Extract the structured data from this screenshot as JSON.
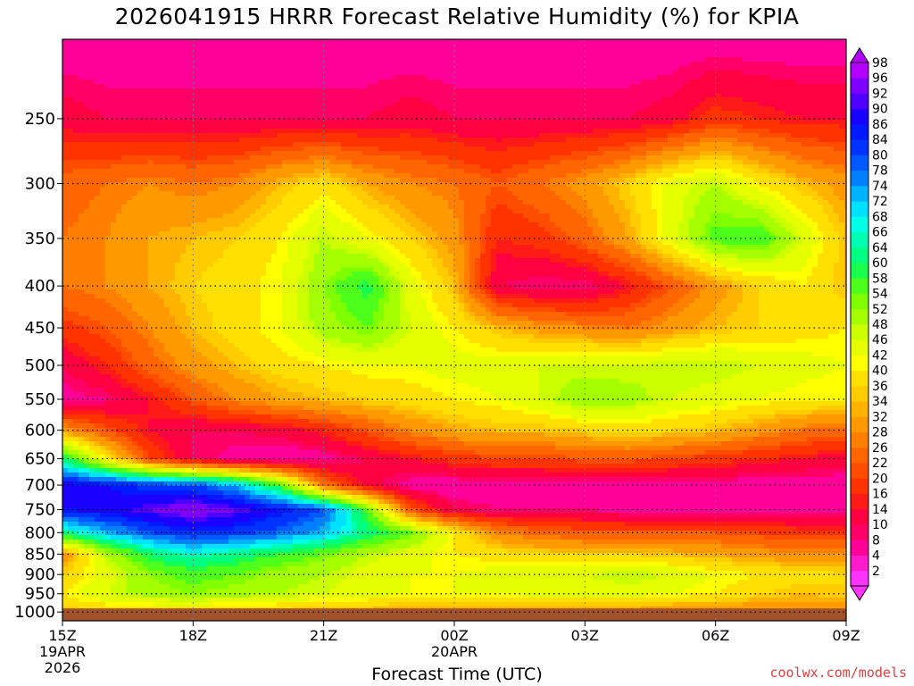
{
  "chart_data": {
    "type": "heatmap",
    "title": "2026041915 HRRR Forecast Relative Humidity (%) for KPIA",
    "xlabel": "Forecast Time (UTC)",
    "ylabel": "",
    "x_ticks": [
      {
        "hours": 0,
        "label": "15Z",
        "date": "19APR",
        "year": "2026"
      },
      {
        "hours": 3,
        "label": "18Z"
      },
      {
        "hours": 6,
        "label": "21Z"
      },
      {
        "hours": 9,
        "label": "00Z",
        "date": "20APR"
      },
      {
        "hours": 12,
        "label": "03Z"
      },
      {
        "hours": 15,
        "label": "06Z"
      },
      {
        "hours": 18,
        "label": "09Z"
      }
    ],
    "x_range_hours": [
      0,
      18
    ],
    "y_ticks": [
      250,
      300,
      350,
      400,
      450,
      500,
      550,
      600,
      650,
      700,
      750,
      800,
      850,
      900,
      950,
      1000
    ],
    "y_range_hPa": [
      200,
      1025
    ],
    "y_scale": "log-pressure",
    "grid": true,
    "colorbar_levels": [
      2,
      4,
      8,
      10,
      14,
      16,
      20,
      22,
      26,
      28,
      32,
      34,
      36,
      40,
      42,
      46,
      48,
      52,
      54,
      58,
      60,
      64,
      66,
      68,
      72,
      74,
      78,
      80,
      84,
      86,
      90,
      92,
      96,
      98
    ],
    "colorbar_colors": [
      "#ff33ff",
      "#ff1acc",
      "#ff0099",
      "#ff0066",
      "#ff0040",
      "#ff1a1a",
      "#ff3300",
      "#ff4d00",
      "#ff6600",
      "#ff8000",
      "#ff9900",
      "#ffb300",
      "#ffcc00",
      "#ffe000",
      "#ffff00",
      "#e6ff00",
      "#ccff00",
      "#a6ff00",
      "#80ff00",
      "#4dff1a",
      "#1aff4d",
      "#00ff80",
      "#00ffb3",
      "#00ffe6",
      "#00e0ff",
      "#00b3ff",
      "#0080ff",
      "#0059ff",
      "#0033ff",
      "#0019ff",
      "#1a00ff",
      "#4d00ff",
      "#8000ff",
      "#b300ff"
    ],
    "ground_level_hPa": 990,
    "ground_color": "#a0522d",
    "series": [
      {
        "pressure": 200,
        "rh": [
          5,
          5,
          5,
          5,
          5,
          5,
          5,
          5,
          5,
          5,
          5,
          5,
          5,
          5,
          5,
          5,
          5,
          5,
          5
        ]
      },
      {
        "pressure": 250,
        "rh": [
          12,
          10,
          10,
          10,
          10,
          10,
          10,
          10,
          12,
          10,
          10,
          10,
          10,
          10,
          12,
          18,
          16,
          14,
          14
        ]
      },
      {
        "pressure": 300,
        "rh": [
          24,
          26,
          28,
          26,
          28,
          34,
          38,
          32,
          28,
          26,
          22,
          26,
          30,
          36,
          44,
          48,
          40,
          34,
          30
        ]
      },
      {
        "pressure": 350,
        "rh": [
          26,
          28,
          32,
          34,
          36,
          40,
          48,
          42,
          36,
          30,
          16,
          18,
          24,
          32,
          44,
          56,
          58,
          46,
          34
        ]
      },
      {
        "pressure": 400,
        "rh": [
          26,
          28,
          32,
          36,
          38,
          42,
          52,
          60,
          44,
          34,
          10,
          8,
          8,
          14,
          22,
          30,
          36,
          40,
          34
        ]
      },
      {
        "pressure": 450,
        "rh": [
          18,
          22,
          28,
          34,
          38,
          42,
          50,
          54,
          46,
          40,
          34,
          30,
          28,
          26,
          30,
          34,
          36,
          38,
          40
        ]
      },
      {
        "pressure": 500,
        "rh": [
          10,
          16,
          24,
          30,
          34,
          38,
          40,
          42,
          42,
          44,
          44,
          46,
          46,
          46,
          48,
          48,
          46,
          44,
          42
        ]
      },
      {
        "pressure": 550,
        "rh": [
          6,
          8,
          14,
          22,
          28,
          32,
          34,
          36,
          38,
          40,
          42,
          46,
          52,
          50,
          46,
          44,
          42,
          40,
          40
        ]
      },
      {
        "pressure": 600,
        "rh": [
          30,
          22,
          14,
          10,
          10,
          12,
          16,
          22,
          28,
          32,
          34,
          34,
          36,
          38,
          36,
          34,
          30,
          26,
          24
        ]
      },
      {
        "pressure": 650,
        "rh": [
          62,
          40,
          20,
          10,
          6,
          4,
          6,
          10,
          14,
          18,
          20,
          20,
          22,
          22,
          20,
          18,
          16,
          14,
          12
        ]
      },
      {
        "pressure": 700,
        "rh": [
          88,
          86,
          82,
          80,
          72,
          56,
          26,
          12,
          6,
          5,
          6,
          6,
          6,
          6,
          6,
          6,
          5,
          5,
          5
        ]
      },
      {
        "pressure": 750,
        "rh": [
          86,
          88,
          92,
          96,
          92,
          86,
          80,
          56,
          22,
          10,
          8,
          8,
          8,
          6,
          6,
          6,
          6,
          6,
          6
        ]
      },
      {
        "pressure": 800,
        "rh": [
          62,
          72,
          80,
          84,
          82,
          78,
          72,
          62,
          54,
          40,
          28,
          24,
          22,
          22,
          22,
          22,
          20,
          18,
          18
        ]
      },
      {
        "pressure": 850,
        "rh": [
          28,
          48,
          60,
          66,
          62,
          58,
          54,
          48,
          44,
          40,
          38,
          36,
          36,
          36,
          34,
          32,
          30,
          28,
          30
        ]
      },
      {
        "pressure": 900,
        "rh": [
          36,
          44,
          52,
          56,
          54,
          50,
          48,
          44,
          42,
          42,
          44,
          46,
          46,
          48,
          46,
          42,
          40,
          38,
          36
        ]
      },
      {
        "pressure": 950,
        "rh": [
          40,
          46,
          50,
          52,
          50,
          48,
          46,
          44,
          42,
          42,
          42,
          44,
          44,
          44,
          42,
          40,
          36,
          34,
          36
        ]
      },
      {
        "pressure": 1000,
        "rh": [
          34,
          36,
          36,
          36,
          34,
          34,
          32,
          32,
          30,
          30,
          30,
          30,
          30,
          30,
          28,
          28,
          28,
          28,
          28
        ]
      }
    ]
  },
  "credit": "coolwx.com/models"
}
